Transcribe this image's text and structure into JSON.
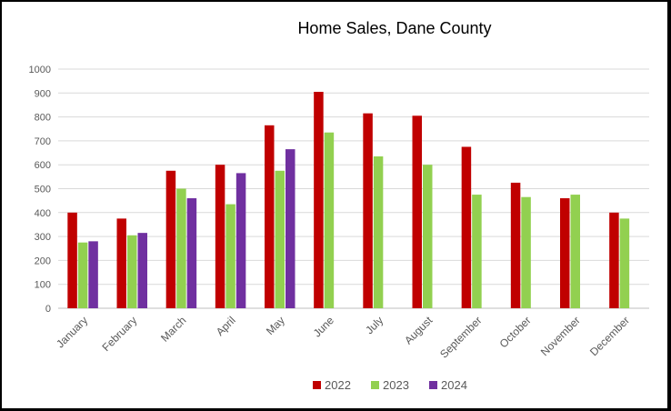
{
  "chart_data": {
    "type": "bar",
    "title": "Home Sales, Dane County",
    "xlabel": "",
    "ylabel": "",
    "ylim": [
      0,
      1000
    ],
    "yticks": [
      "0",
      "100",
      "200",
      "300",
      "400",
      "500",
      "600",
      "700",
      "800",
      "900",
      "1000"
    ],
    "grid": true,
    "legend_position": "bottom",
    "categories": [
      "January",
      "February",
      "March",
      "April",
      "May",
      "June",
      "July",
      "August",
      "September",
      "October",
      "November",
      "December"
    ],
    "series": [
      {
        "name": "2022",
        "color": "#c00000",
        "values": [
          400,
          375,
          575,
          600,
          765,
          905,
          815,
          805,
          675,
          525,
          460,
          400
        ]
      },
      {
        "name": "2023",
        "color": "#92d050",
        "values": [
          275,
          305,
          500,
          435,
          575,
          735,
          635,
          600,
          475,
          465,
          475,
          375
        ]
      },
      {
        "name": "2024",
        "color": "#7030a0",
        "values": [
          280,
          315,
          460,
          565,
          665,
          null,
          null,
          null,
          null,
          null,
          null,
          null
        ]
      }
    ]
  }
}
